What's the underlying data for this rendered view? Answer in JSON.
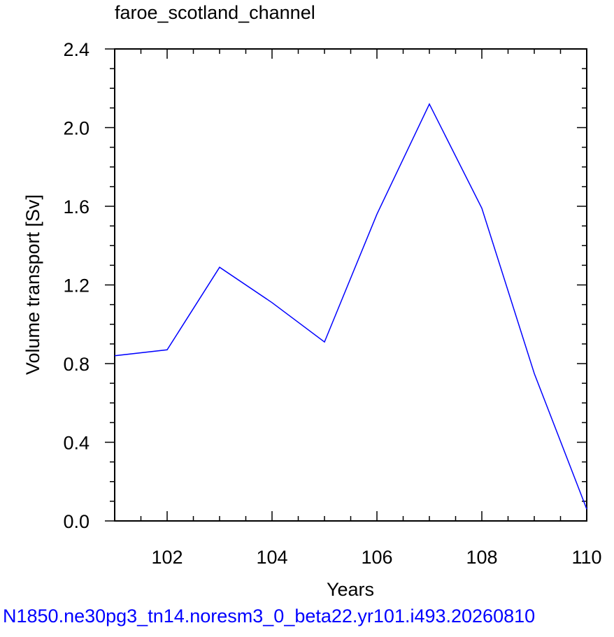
{
  "chart_data": {
    "type": "line",
    "title": "faroe_scotland_channel",
    "xlabel": "Years",
    "ylabel": "Volume transport [Sv]",
    "xlim": [
      101,
      110
    ],
    "ylim": [
      0.0,
      2.4
    ],
    "x_ticks": [
      "102",
      "104",
      "106",
      "108",
      "110"
    ],
    "y_ticks": [
      "0.0",
      "0.4",
      "0.8",
      "1.2",
      "1.6",
      "2.0",
      "2.4"
    ],
    "grid": false,
    "series": [
      {
        "color": "#0000ff",
        "x": [
          101,
          102,
          103,
          104,
          105,
          106,
          107,
          108,
          109,
          110
        ],
        "y": [
          0.84,
          0.87,
          1.29,
          1.11,
          0.91,
          1.56,
          2.12,
          1.59,
          0.75,
          0.06
        ]
      }
    ]
  },
  "caption": "N1850.ne30pg3_tn14.noresm3_0_beta22.yr101.i493.20260810"
}
